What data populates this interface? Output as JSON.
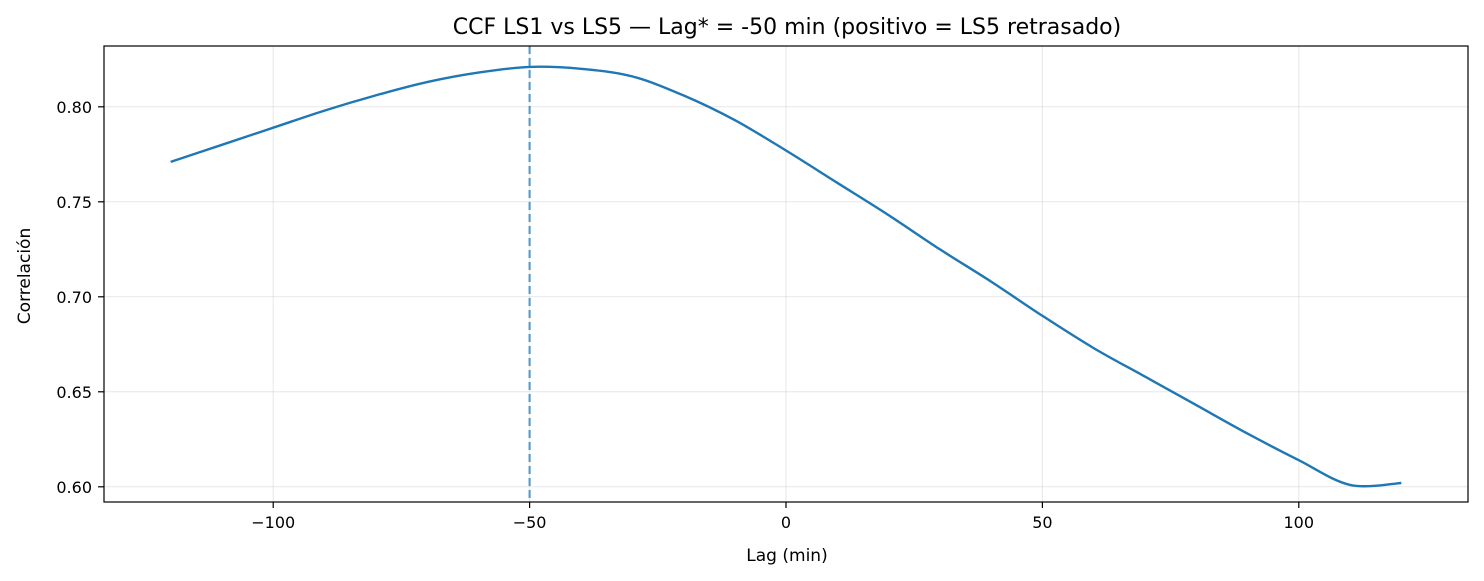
{
  "chart_data": {
    "type": "line",
    "title": "CCF LS1 vs LS5 — Lag* = -50 min (positivo = LS5 retrasado)",
    "xlabel": "Lag (min)",
    "ylabel": "Correlación",
    "xlim": [
      -133,
      133
    ],
    "ylim": [
      0.592,
      0.832
    ],
    "xticks": [
      -100,
      -50,
      0,
      50,
      100
    ],
    "xtick_labels": [
      "−100",
      "−50",
      "0",
      "50",
      "100"
    ],
    "yticks": [
      0.6,
      0.65,
      0.7,
      0.75,
      0.8
    ],
    "ytick_labels": [
      "0.60",
      "0.65",
      "0.70",
      "0.75",
      "0.80"
    ],
    "grid": true,
    "series": [
      {
        "color": "#1f77b4",
        "x": [
          -120,
          -110,
          -100,
          -90,
          -80,
          -70,
          -60,
          -50,
          -40,
          -30,
          -20,
          -10,
          0,
          10,
          20,
          30,
          40,
          50,
          60,
          70,
          80,
          90,
          100,
          110,
          120
        ],
        "y": [
          0.771,
          0.78,
          0.789,
          0.798,
          0.806,
          0.813,
          0.818,
          0.821,
          0.82,
          0.816,
          0.806,
          0.793,
          0.777,
          0.76,
          0.743,
          0.725,
          0.708,
          0.69,
          0.673,
          0.658,
          0.643,
          0.628,
          0.614,
          0.601,
          0.602
        ]
      }
    ],
    "vline": {
      "x": -50,
      "color": "#1f77b4",
      "style": "dashed"
    }
  }
}
